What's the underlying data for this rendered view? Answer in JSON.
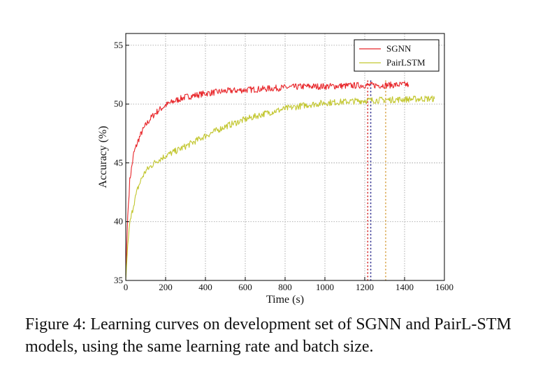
{
  "caption": "Figure 4: Learning curves on development set of SGNN and PairL-STM models, using the same learning rate and batch size.",
  "chart_data": {
    "type": "line",
    "xlabel": "Time (s)",
    "ylabel": "Accuracy (%)",
    "xlim": [
      0,
      1600
    ],
    "ylim": [
      35,
      56
    ],
    "xticks": [
      0,
      200,
      400,
      600,
      800,
      1000,
      1200,
      1400,
      1600
    ],
    "yticks": [
      35,
      40,
      45,
      50,
      55
    ],
    "grid": true,
    "legend_position": "top-right",
    "series": [
      {
        "name": "SGNN",
        "color": "#e8262a",
        "x": [
          0,
          10,
          20,
          40,
          60,
          80,
          100,
          130,
          160,
          200,
          250,
          300,
          400,
          500,
          600,
          700,
          800,
          900,
          1000,
          1100,
          1200,
          1300,
          1400,
          1420
        ],
        "y": [
          35.5,
          40.5,
          43.5,
          45.8,
          46.8,
          47.6,
          48.2,
          48.9,
          49.4,
          49.9,
          50.3,
          50.6,
          50.9,
          51.1,
          51.2,
          51.3,
          51.4,
          51.5,
          51.5,
          51.55,
          51.6,
          51.6,
          51.65,
          51.65
        ]
      },
      {
        "name": "PairLSTM",
        "color": "#c2c62e",
        "x": [
          0,
          10,
          20,
          40,
          60,
          80,
          100,
          150,
          200,
          250,
          300,
          400,
          500,
          600,
          700,
          800,
          900,
          1000,
          1100,
          1200,
          1300,
          1400,
          1500,
          1550
        ],
        "y": [
          35,
          38,
          39.8,
          41.5,
          42.8,
          43.7,
          44.3,
          45.1,
          45.6,
          46.0,
          46.4,
          47.3,
          48.1,
          48.7,
          49.2,
          49.6,
          49.9,
          50.1,
          50.2,
          50.3,
          50.35,
          50.4,
          50.45,
          50.45
        ]
      }
    ],
    "vertical_markers": [
      {
        "x": 1215,
        "color": "#d22020"
      },
      {
        "x": 1230,
        "color": "#222288"
      },
      {
        "x": 1305,
        "color": "#d8a040"
      }
    ]
  }
}
